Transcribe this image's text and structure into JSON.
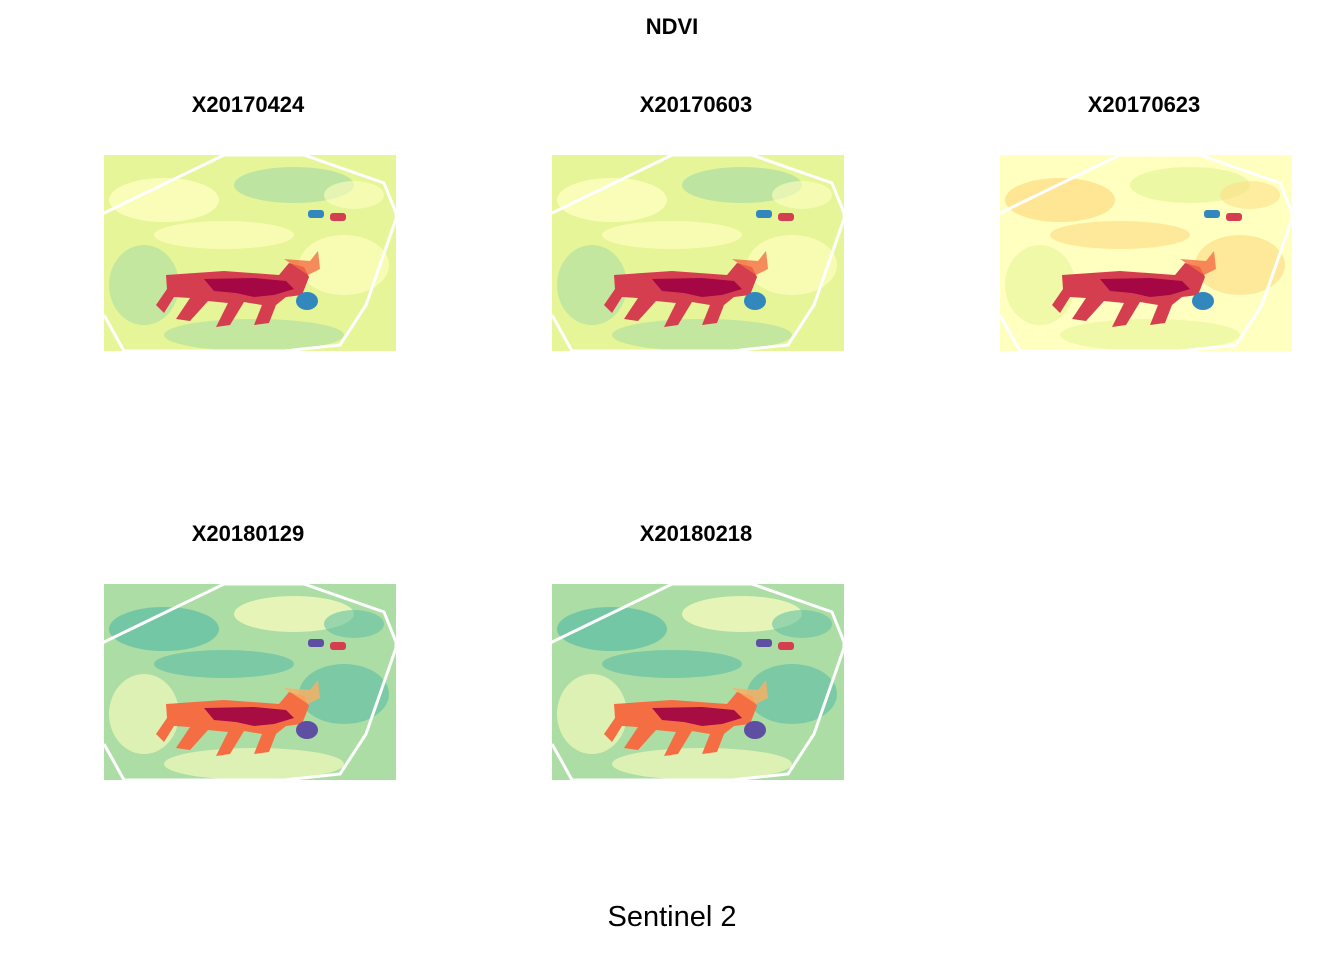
{
  "figure": {
    "title": "NDVI",
    "footer": "Sentinel 2"
  },
  "panels": [
    {
      "label": "X20170424",
      "tone": "spring"
    },
    {
      "label": "X20170603",
      "tone": "spring"
    },
    {
      "label": "X20170623",
      "tone": "summer"
    },
    {
      "label": "X20180129",
      "tone": "winter"
    },
    {
      "label": "X20180218",
      "tone": "winter"
    }
  ],
  "palette": {
    "dark_red": "#9e0142",
    "red": "#d53e4f",
    "orange": "#f46d43",
    "light_orange": "#fdae61",
    "pale_yellow": "#fee08b",
    "cream": "#ffffbf",
    "light_green": "#e6f598",
    "green": "#abdda4",
    "teal": "#66c2a5",
    "blue": "#3288bd",
    "purple": "#5e4fa2",
    "outline": "#ffffff"
  }
}
